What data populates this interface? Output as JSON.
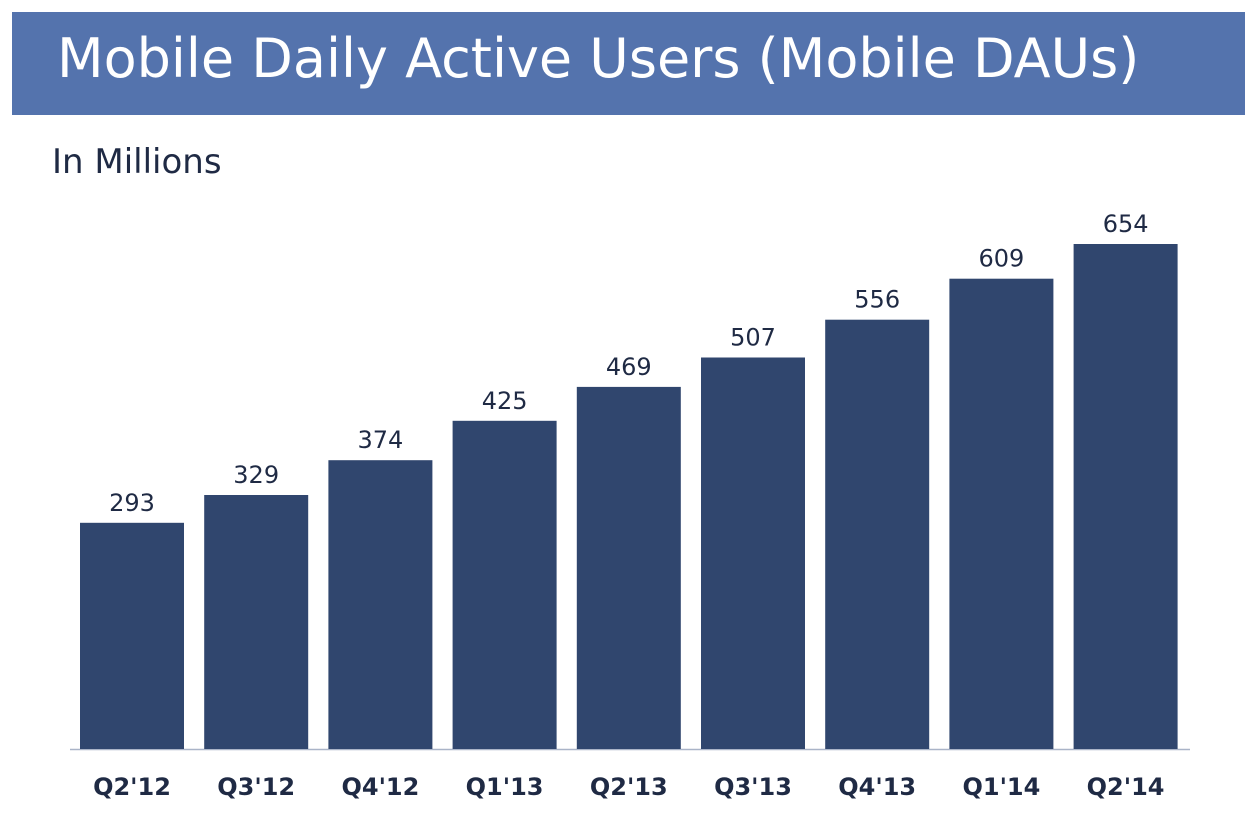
{
  "title": "Mobile Daily Active Users (Mobile DAUs)",
  "subtitle": "In Millions",
  "colors": {
    "banner": "#5473ad",
    "bar": "#30466e",
    "axis": "#aab4c8",
    "text": "#1f2a44"
  },
  "chart_data": {
    "type": "bar",
    "categories": [
      "Q2'12",
      "Q3'12",
      "Q4'12",
      "Q1'13",
      "Q2'13",
      "Q3'13",
      "Q4'13",
      "Q1'14",
      "Q2'14"
    ],
    "values": [
      293,
      329,
      374,
      425,
      469,
      507,
      556,
      609,
      654
    ],
    "data_labels": [
      "293",
      "329",
      "374",
      "425",
      "469",
      "507",
      "556",
      "609",
      "654"
    ],
    "ylim": [
      0,
      654
    ],
    "grid": false,
    "legend": "none"
  }
}
